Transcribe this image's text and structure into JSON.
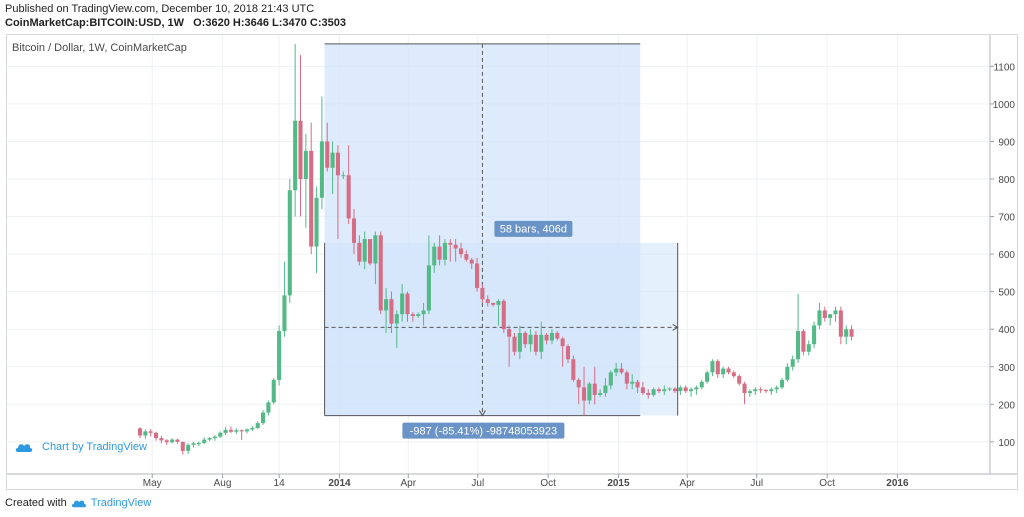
{
  "header": {
    "published": "Published on TradingView.com, December 10, 2018 21:43 UTC",
    "symbol": "CoinMarketCap:BITCOIN:USD, 1W",
    "ohlc": "O:3620 H:3646 L:3470 C:3503"
  },
  "footer": {
    "created_with": "Created with",
    "brand": "TradingView"
  },
  "chart_badge": "Chart by TradingView",
  "colors": {
    "up": "#53b987",
    "down": "#d56d84",
    "measure_fill": "#cfe3fb",
    "label_bg": "#6a93c7"
  },
  "chart_data": {
    "type": "candlestick",
    "title": "Bitcoin / Dollar, 1W, CoinMarketCap",
    "ylim": [
      0,
      1150
    ],
    "y_ticks": [
      100,
      200,
      300,
      400,
      500,
      600,
      700,
      800,
      900,
      1000,
      1100
    ],
    "x_ticks": [
      {
        "label": "May",
        "date": "2013-05-01",
        "bold": false
      },
      {
        "label": "Aug",
        "date": "2013-08-01",
        "bold": false
      },
      {
        "label": "14",
        "date": "2013-10-14",
        "bold": false
      },
      {
        "label": "2014",
        "date": "2014-01-01",
        "bold": true
      },
      {
        "label": "Apr",
        "date": "2014-04-01",
        "bold": false
      },
      {
        "label": "Jul",
        "date": "2014-07-01",
        "bold": false
      },
      {
        "label": "Oct",
        "date": "2014-10-01",
        "bold": false
      },
      {
        "label": "2015",
        "date": "2015-01-01",
        "bold": true
      },
      {
        "label": "Apr",
        "date": "2015-04-01",
        "bold": false
      },
      {
        "label": "Jul",
        "date": "2015-07-01",
        "bold": false
      },
      {
        "label": "Oct",
        "date": "2015-10-01",
        "bold": false
      },
      {
        "label": "2016",
        "date": "2016-01-01",
        "bold": true
      }
    ],
    "candles": [
      [
        136,
        139,
        110,
        117
      ],
      [
        117,
        133,
        108,
        128
      ],
      [
        128,
        134,
        114,
        124
      ],
      [
        124,
        127,
        103,
        110
      ],
      [
        110,
        116,
        96,
        104
      ],
      [
        104,
        107,
        92,
        99
      ],
      [
        99,
        110,
        96,
        106
      ],
      [
        106,
        108,
        95,
        100
      ],
      [
        100,
        101,
        66,
        76
      ],
      [
        76,
        96,
        68,
        92
      ],
      [
        92,
        100,
        85,
        96
      ],
      [
        96,
        101,
        88,
        97
      ],
      [
        97,
        112,
        94,
        106
      ],
      [
        106,
        113,
        102,
        110
      ],
      [
        110,
        118,
        103,
        114
      ],
      [
        114,
        128,
        110,
        124
      ],
      [
        124,
        140,
        118,
        132
      ],
      [
        132,
        141,
        123,
        127
      ],
      [
        127,
        136,
        121,
        131
      ],
      [
        131,
        133,
        105,
        128
      ],
      [
        128,
        136,
        123,
        133
      ],
      [
        133,
        142,
        129,
        137
      ],
      [
        137,
        155,
        134,
        150
      ],
      [
        150,
        185,
        145,
        178
      ],
      [
        178,
        210,
        170,
        205
      ],
      [
        205,
        270,
        200,
        265
      ],
      [
        265,
        410,
        250,
        395
      ],
      [
        395,
        580,
        380,
        490
      ],
      [
        490,
        800,
        470,
        770
      ],
      [
        770,
        1160,
        700,
        955
      ],
      [
        955,
        1130,
        700,
        800
      ],
      [
        800,
        920,
        670,
        875
      ],
      [
        875,
        950,
        600,
        620
      ],
      [
        620,
        780,
        550,
        750
      ],
      [
        750,
        1020,
        720,
        900
      ],
      [
        900,
        950,
        820,
        830
      ],
      [
        830,
        900,
        760,
        870
      ],
      [
        870,
        890,
        640,
        810
      ],
      [
        810,
        820,
        800,
        810
      ],
      [
        810,
        890,
        680,
        695
      ],
      [
        695,
        720,
        600,
        630
      ],
      [
        630,
        650,
        570,
        580
      ],
      [
        580,
        660,
        560,
        640
      ],
      [
        640,
        640,
        570,
        575
      ],
      [
        575,
        660,
        520,
        650
      ],
      [
        650,
        660,
        440,
        450
      ],
      [
        450,
        510,
        390,
        480
      ],
      [
        480,
        500,
        390,
        415
      ],
      [
        415,
        450,
        350,
        440
      ],
      [
        440,
        520,
        420,
        495
      ],
      [
        495,
        500,
        420,
        440
      ],
      [
        440,
        445,
        420,
        435
      ],
      [
        435,
        445,
        430,
        440
      ],
      [
        440,
        470,
        410,
        450
      ],
      [
        450,
        650,
        440,
        570
      ],
      [
        570,
        630,
        550,
        620
      ],
      [
        620,
        650,
        570,
        585
      ],
      [
        585,
        640,
        570,
        630
      ],
      [
        630,
        640,
        580,
        625
      ],
      [
        625,
        640,
        580,
        615
      ],
      [
        615,
        630,
        590,
        600
      ],
      [
        600,
        610,
        580,
        585
      ],
      [
        585,
        590,
        560,
        575
      ],
      [
        575,
        590,
        500,
        510
      ],
      [
        510,
        520,
        470,
        480
      ],
      [
        480,
        490,
        460,
        470
      ],
      [
        470,
        470,
        460,
        465
      ],
      [
        465,
        480,
        410,
        475
      ],
      [
        475,
        480,
        390,
        400
      ],
      [
        400,
        410,
        300,
        380
      ],
      [
        380,
        390,
        330,
        340
      ],
      [
        340,
        410,
        320,
        390
      ],
      [
        390,
        395,
        350,
        360
      ],
      [
        360,
        400,
        340,
        385
      ],
      [
        385,
        395,
        330,
        340
      ],
      [
        340,
        420,
        320,
        385
      ],
      [
        385,
        390,
        360,
        370
      ],
      [
        370,
        400,
        360,
        390
      ],
      [
        390,
        395,
        370,
        375
      ],
      [
        375,
        380,
        300,
        355
      ],
      [
        355,
        360,
        310,
        320
      ],
      [
        320,
        330,
        260,
        265
      ],
      [
        265,
        270,
        200,
        245
      ],
      [
        245,
        300,
        170,
        210
      ],
      [
        210,
        260,
        200,
        255
      ],
      [
        255,
        300,
        200,
        225
      ],
      [
        225,
        240,
        220,
        230
      ],
      [
        230,
        270,
        220,
        250
      ],
      [
        250,
        290,
        240,
        285
      ],
      [
        285,
        310,
        275,
        295
      ],
      [
        295,
        310,
        280,
        285
      ],
      [
        285,
        290,
        240,
        255
      ],
      [
        255,
        280,
        240,
        260
      ],
      [
        260,
        265,
        230,
        245
      ],
      [
        245,
        260,
        225,
        230
      ],
      [
        230,
        240,
        215,
        225
      ],
      [
        225,
        245,
        220,
        240
      ],
      [
        240,
        245,
        230,
        235
      ],
      [
        235,
        250,
        225,
        240
      ],
      [
        240,
        245,
        235,
        242
      ],
      [
        242,
        245,
        230,
        235
      ],
      [
        235,
        250,
        225,
        245
      ],
      [
        245,
        250,
        230,
        235
      ],
      [
        235,
        245,
        220,
        240
      ],
      [
        240,
        250,
        225,
        245
      ],
      [
        245,
        265,
        240,
        260
      ],
      [
        260,
        290,
        255,
        285
      ],
      [
        285,
        320,
        275,
        315
      ],
      [
        315,
        320,
        270,
        280
      ],
      [
        280,
        300,
        270,
        295
      ],
      [
        295,
        300,
        280,
        285
      ],
      [
        285,
        290,
        270,
        275
      ],
      [
        275,
        280,
        250,
        255
      ],
      [
        255,
        260,
        200,
        230
      ],
      [
        230,
        240,
        220,
        235
      ],
      [
        235,
        245,
        225,
        240
      ],
      [
        240,
        245,
        230,
        238
      ],
      [
        238,
        240,
        230,
        235
      ],
      [
        235,
        245,
        225,
        240
      ],
      [
        240,
        250,
        230,
        245
      ],
      [
        245,
        270,
        240,
        265
      ],
      [
        265,
        310,
        260,
        300
      ],
      [
        300,
        330,
        290,
        320
      ],
      [
        320,
        495,
        310,
        395
      ],
      [
        395,
        400,
        330,
        340
      ],
      [
        340,
        370,
        330,
        360
      ],
      [
        360,
        420,
        350,
        410
      ],
      [
        410,
        470,
        400,
        450
      ],
      [
        450,
        460,
        420,
        430
      ],
      [
        430,
        440,
        410,
        440
      ],
      [
        440,
        460,
        420,
        450
      ],
      [
        450,
        460,
        360,
        380
      ],
      [
        380,
        410,
        360,
        400
      ],
      [
        400,
        410,
        370,
        380
      ]
    ],
    "first_candle_date": "2013-04-15",
    "measure": {
      "start_bar": 35,
      "end_bar": 93,
      "high": 1160,
      "low": 170,
      "mid_price": 630,
      "top_label": "58 bars, 406d",
      "bottom_label": "-987 (-85.41%) -98748053923",
      "span_end_bar": 100,
      "avg_line": 405
    }
  }
}
